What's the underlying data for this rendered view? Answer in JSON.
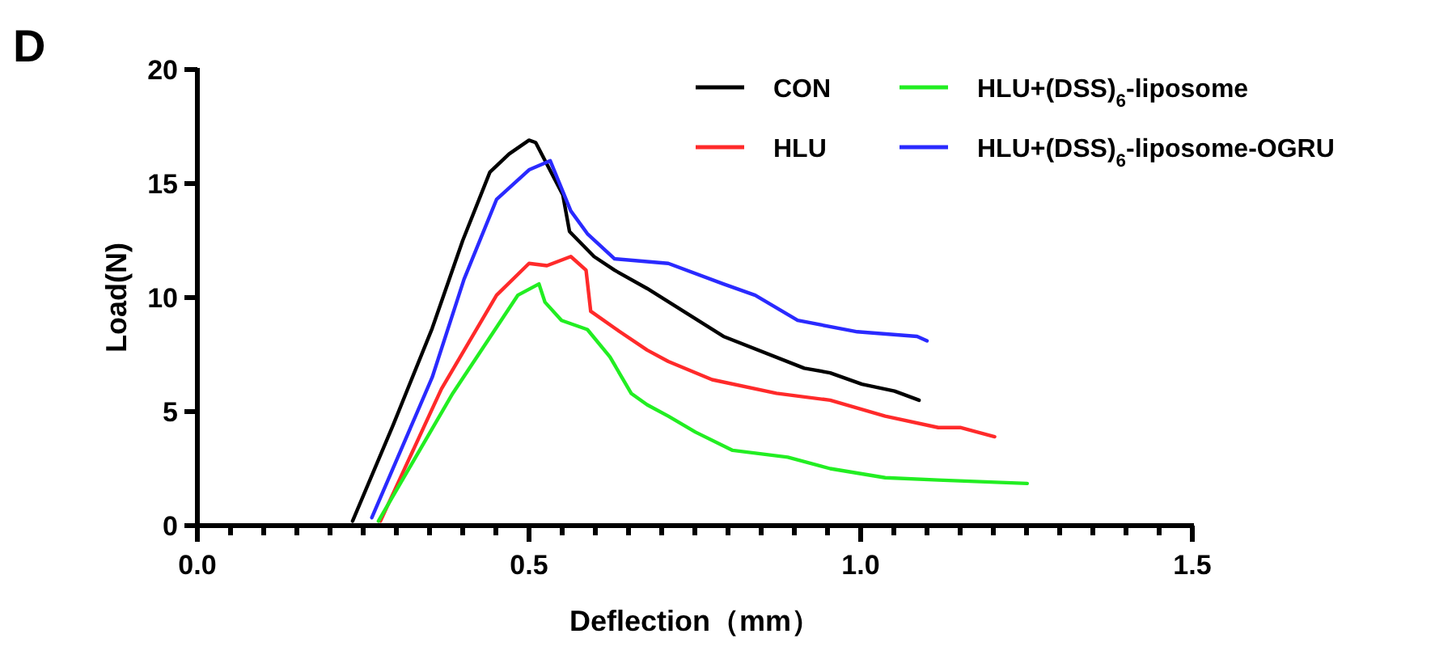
{
  "chart_data": {
    "type": "line",
    "title": "D",
    "xlabel": "Deflection（mm）",
    "ylabel": "Load(N)",
    "xlim": [
      0,
      1.5
    ],
    "ylim": [
      0,
      20
    ],
    "xticks": [
      {
        "value": 0,
        "label": "0.0"
      },
      {
        "value": 0.05,
        "label": null
      },
      {
        "value": 0.1,
        "label": null
      },
      {
        "value": 0.15,
        "label": null
      },
      {
        "value": 0.2,
        "label": null
      },
      {
        "value": 0.25,
        "label": null
      },
      {
        "value": 0.3,
        "label": null
      },
      {
        "value": 0.35,
        "label": null
      },
      {
        "value": 0.4,
        "label": null
      },
      {
        "value": 0.45,
        "label": null
      },
      {
        "value": 0.5,
        "label": "0.5"
      },
      {
        "value": 0.55,
        "label": null
      },
      {
        "value": 0.6,
        "label": null
      },
      {
        "value": 0.65,
        "label": null
      },
      {
        "value": 0.7,
        "label": null
      },
      {
        "value": 0.75,
        "label": null
      },
      {
        "value": 0.8,
        "label": null
      },
      {
        "value": 0.85,
        "label": null
      },
      {
        "value": 0.9,
        "label": null
      },
      {
        "value": 0.95,
        "label": null
      },
      {
        "value": 1.0,
        "label": "1.0"
      },
      {
        "value": 1.05,
        "label": null
      },
      {
        "value": 1.1,
        "label": null
      },
      {
        "value": 1.15,
        "label": null
      },
      {
        "value": 1.2,
        "label": null
      },
      {
        "value": 1.25,
        "label": null
      },
      {
        "value": 1.3,
        "label": null
      },
      {
        "value": 1.35,
        "label": null
      },
      {
        "value": 1.4,
        "label": null
      },
      {
        "value": 1.45,
        "label": null
      },
      {
        "value": 1.5,
        "label": "1.5"
      }
    ],
    "yticks": [
      0,
      5,
      10,
      15,
      20
    ],
    "grid": false,
    "legend": "top right",
    "marker": "none",
    "line_style": "solid",
    "series": [
      {
        "name": "CON",
        "color": "#000000",
        "x": [
          0.234,
          0.295,
          0.354,
          0.4,
          0.441,
          0.47,
          0.5,
          0.51,
          0.551,
          0.561,
          0.598,
          0.629,
          0.678,
          0.793,
          0.915,
          0.954,
          1.002,
          1.051,
          1.088
        ],
        "values": [
          0.2,
          4.4,
          8.65,
          12.5,
          15.5,
          16.3,
          16.9,
          16.8,
          14.5,
          12.9,
          11.8,
          11.2,
          10.4,
          8.3,
          6.9,
          6.7,
          6.2,
          5.9,
          5.5
        ]
      },
      {
        "name": "HLU",
        "color": "#ff2a2a",
        "x": [
          0.276,
          0.368,
          0.451,
          0.5,
          0.527,
          0.563,
          0.586,
          0.593,
          0.637,
          0.678,
          0.71,
          0.776,
          0.873,
          0.954,
          1.037,
          1.117,
          1.15,
          1.202
        ],
        "values": [
          0.2,
          6.0,
          10.1,
          11.5,
          11.4,
          11.8,
          11.2,
          9.4,
          8.5,
          7.7,
          7.2,
          6.4,
          5.8,
          5.5,
          4.8,
          4.3,
          4.3,
          3.9
        ]
      },
      {
        "name": "HLU+(DSS)$_{6}$-liposome",
        "color": "#22ee22",
        "x": [
          0.273,
          0.385,
          0.483,
          0.515,
          0.524,
          0.549,
          0.588,
          0.622,
          0.654,
          0.678,
          0.71,
          0.751,
          0.807,
          0.89,
          0.954,
          1.037,
          1.117,
          1.251
        ],
        "values": [
          0.2,
          5.8,
          10.1,
          10.6,
          9.8,
          9.0,
          8.6,
          7.4,
          5.8,
          5.3,
          4.8,
          4.1,
          3.3,
          3.0,
          2.5,
          2.1,
          2.0,
          1.85
        ]
      },
      {
        "name": "HLU+(DSS)$_{6}$-liposome-OGRU",
        "color": "#2a2aff",
        "x": [
          0.263,
          0.354,
          0.402,
          0.451,
          0.5,
          0.532,
          0.563,
          0.588,
          0.629,
          0.71,
          0.793,
          0.841,
          0.905,
          0.995,
          1.085,
          1.1
        ],
        "values": [
          0.35,
          6.5,
          10.8,
          14.3,
          15.6,
          16.0,
          13.8,
          12.8,
          11.7,
          11.5,
          10.6,
          10.1,
          9.0,
          8.5,
          8.3,
          8.1
        ]
      }
    ]
  }
}
